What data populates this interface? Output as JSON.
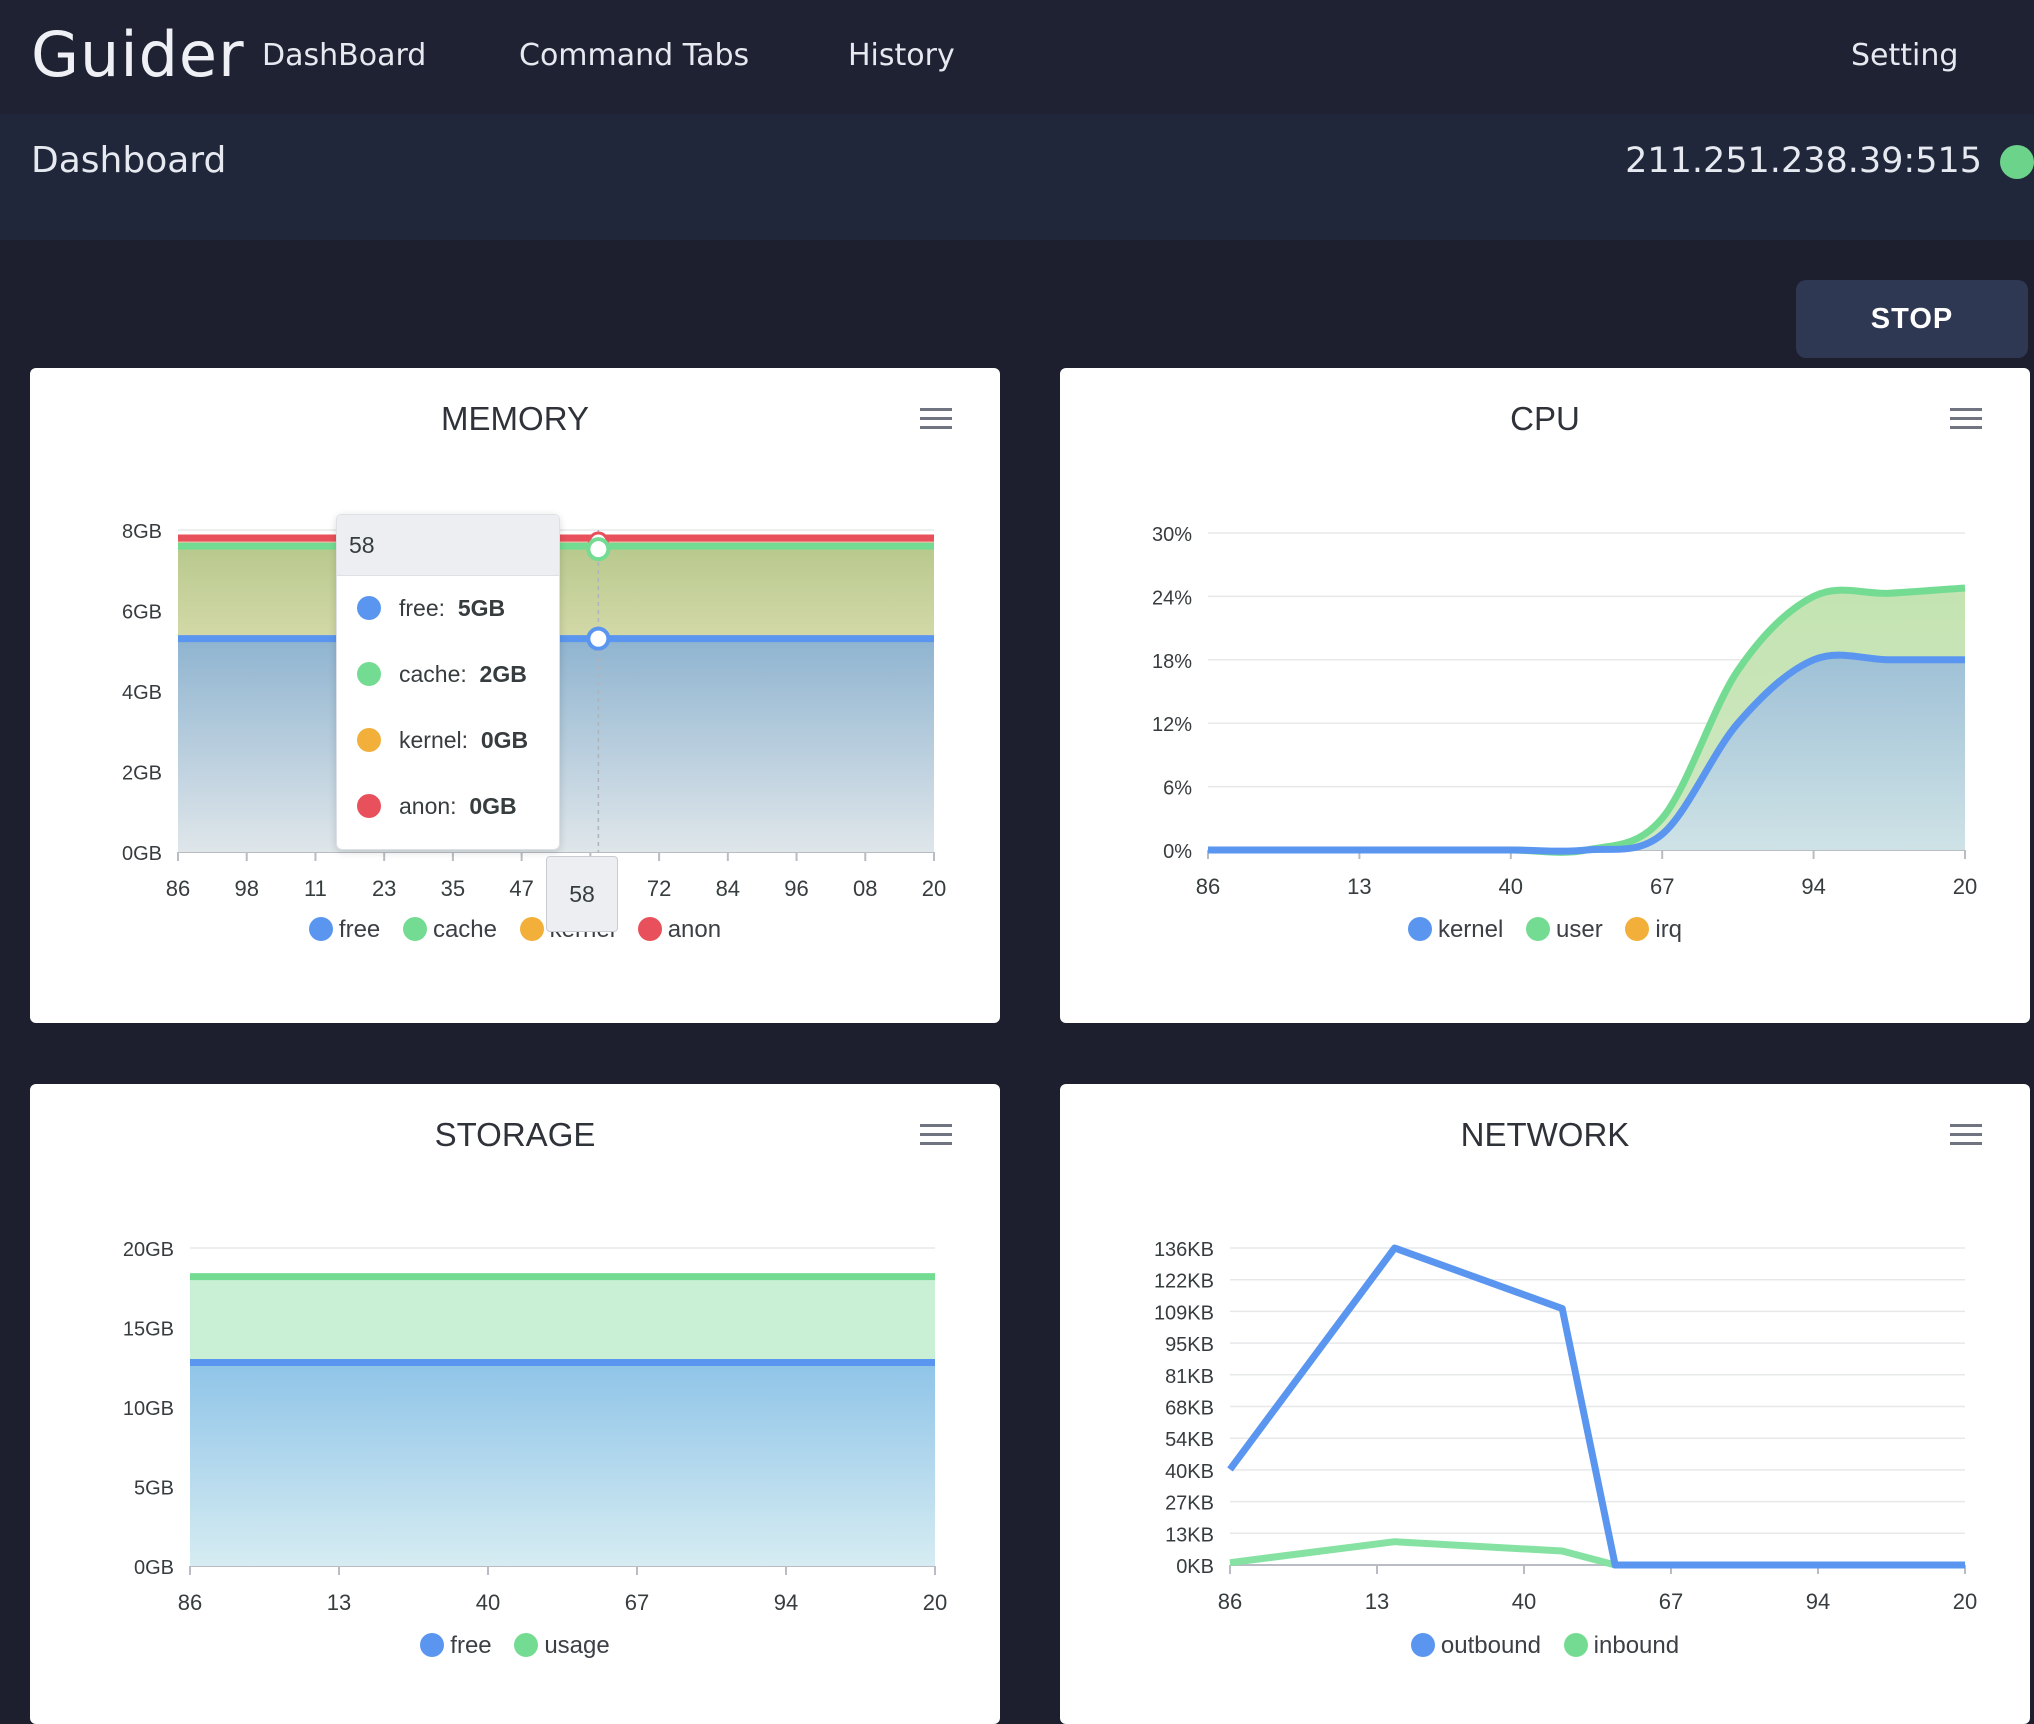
{
  "app": {
    "brand": "Guider"
  },
  "nav": [
    {
      "label": "DashBoard"
    },
    {
      "label": "Command Tabs"
    },
    {
      "label": "History"
    },
    {
      "label": "Setting"
    }
  ],
  "header": {
    "title": "Dashboard",
    "address": "211.251.238.39:515",
    "status_color": "#6cd38b"
  },
  "controls": {
    "stop_label": "STOP"
  },
  "colors": {
    "blue": "#5a96f0",
    "green": "#74dc92",
    "orange": "#f2b03b",
    "red": "#e8505b"
  },
  "tooltip": {
    "title": "58",
    "rows": [
      {
        "name": "free",
        "value": "5GB"
      },
      {
        "name": "cache",
        "value": "2GB"
      },
      {
        "name": "kernel",
        "value": "0GB"
      },
      {
        "name": "anon",
        "value": "0GB"
      }
    ]
  },
  "chart_data": [
    {
      "id": "memory",
      "type": "area",
      "title": "MEMORY",
      "categories": [
        "86",
        "98",
        "11",
        "23",
        "35",
        "47",
        "58",
        "72",
        "84",
        "96",
        "08",
        "20"
      ],
      "y_ticks": [
        "8GB",
        "6GB",
        "4GB",
        "2GB",
        "0GB"
      ],
      "ylim": [
        0,
        8
      ],
      "series": [
        {
          "name": "free",
          "values": [
            5.3,
            5.3,
            5.3,
            5.3,
            5.3,
            5.3,
            5.3,
            5.3,
            5.3,
            5.3,
            5.3,
            5.3
          ]
        },
        {
          "name": "cache",
          "values": [
            7.6,
            7.6,
            7.6,
            7.6,
            7.6,
            7.6,
            7.6,
            7.6,
            7.6,
            7.6,
            7.6,
            7.6
          ]
        },
        {
          "name": "kernel",
          "values": [
            7.6,
            7.6,
            7.6,
            7.6,
            7.6,
            7.6,
            7.6,
            7.6,
            7.6,
            7.6,
            7.6,
            7.6
          ]
        },
        {
          "name": "anon",
          "values": [
            7.8,
            7.8,
            7.8,
            7.8,
            7.8,
            7.8,
            7.8,
            7.8,
            7.8,
            7.8,
            7.8,
            7.8
          ]
        }
      ],
      "grid": true,
      "legend": "bottom"
    },
    {
      "id": "cpu",
      "type": "area",
      "title": "CPU",
      "categories": [
        "86",
        "13",
        "40",
        "67",
        "94",
        "20"
      ],
      "x_values": [
        0,
        0.5,
        1,
        1.5,
        2,
        2.5,
        3,
        3.5,
        4,
        4.5,
        5
      ],
      "y_ticks": [
        "30%",
        "24%",
        "18%",
        "12%",
        "6%",
        "0%"
      ],
      "ylim": [
        0,
        30
      ],
      "series": [
        {
          "name": "kernel",
          "values": [
            0,
            0,
            0,
            0,
            0,
            0,
            1.5,
            12,
            18,
            18,
            18
          ]
        },
        {
          "name": "user",
          "values": [
            0,
            0,
            0,
            0,
            0,
            0,
            3,
            17,
            24,
            24.3,
            24.8
          ]
        },
        {
          "name": "irq",
          "values": [
            0,
            0,
            0,
            0,
            0,
            0,
            0,
            0,
            0,
            0,
            0
          ]
        }
      ],
      "grid": true,
      "legend": "bottom"
    },
    {
      "id": "storage",
      "type": "area",
      "title": "STORAGE",
      "categories": [
        "86",
        "13",
        "40",
        "67",
        "94",
        "20"
      ],
      "y_ticks": [
        "20GB",
        "15GB",
        "10GB",
        "5GB",
        "0GB"
      ],
      "ylim": [
        0,
        20
      ],
      "series": [
        {
          "name": "free",
          "values": [
            12.8,
            12.8,
            12.8,
            12.8,
            12.8,
            12.8
          ]
        },
        {
          "name": "usage",
          "values": [
            18.2,
            18.2,
            18.2,
            18.2,
            18.2,
            18.2
          ]
        }
      ],
      "grid": true,
      "legend": "bottom"
    },
    {
      "id": "network",
      "type": "line",
      "title": "NETWORK",
      "categories": [
        "86",
        "13",
        "40",
        "67",
        "94",
        "20"
      ],
      "x_values": [
        0,
        1.12,
        2.26,
        2.62,
        3,
        5
      ],
      "y_ticks": [
        "136KB",
        "122KB",
        "109KB",
        "95KB",
        "81KB",
        "68KB",
        "54KB",
        "40KB",
        "27KB",
        "13KB",
        "0KB"
      ],
      "ylim": [
        0,
        136
      ],
      "series": [
        {
          "name": "outbound",
          "values": [
            41,
            136,
            110,
            0,
            0,
            0
          ]
        },
        {
          "name": "inbound",
          "values": [
            1,
            10,
            6,
            0,
            0,
            0
          ]
        }
      ],
      "grid": true,
      "legend": "bottom"
    }
  ]
}
